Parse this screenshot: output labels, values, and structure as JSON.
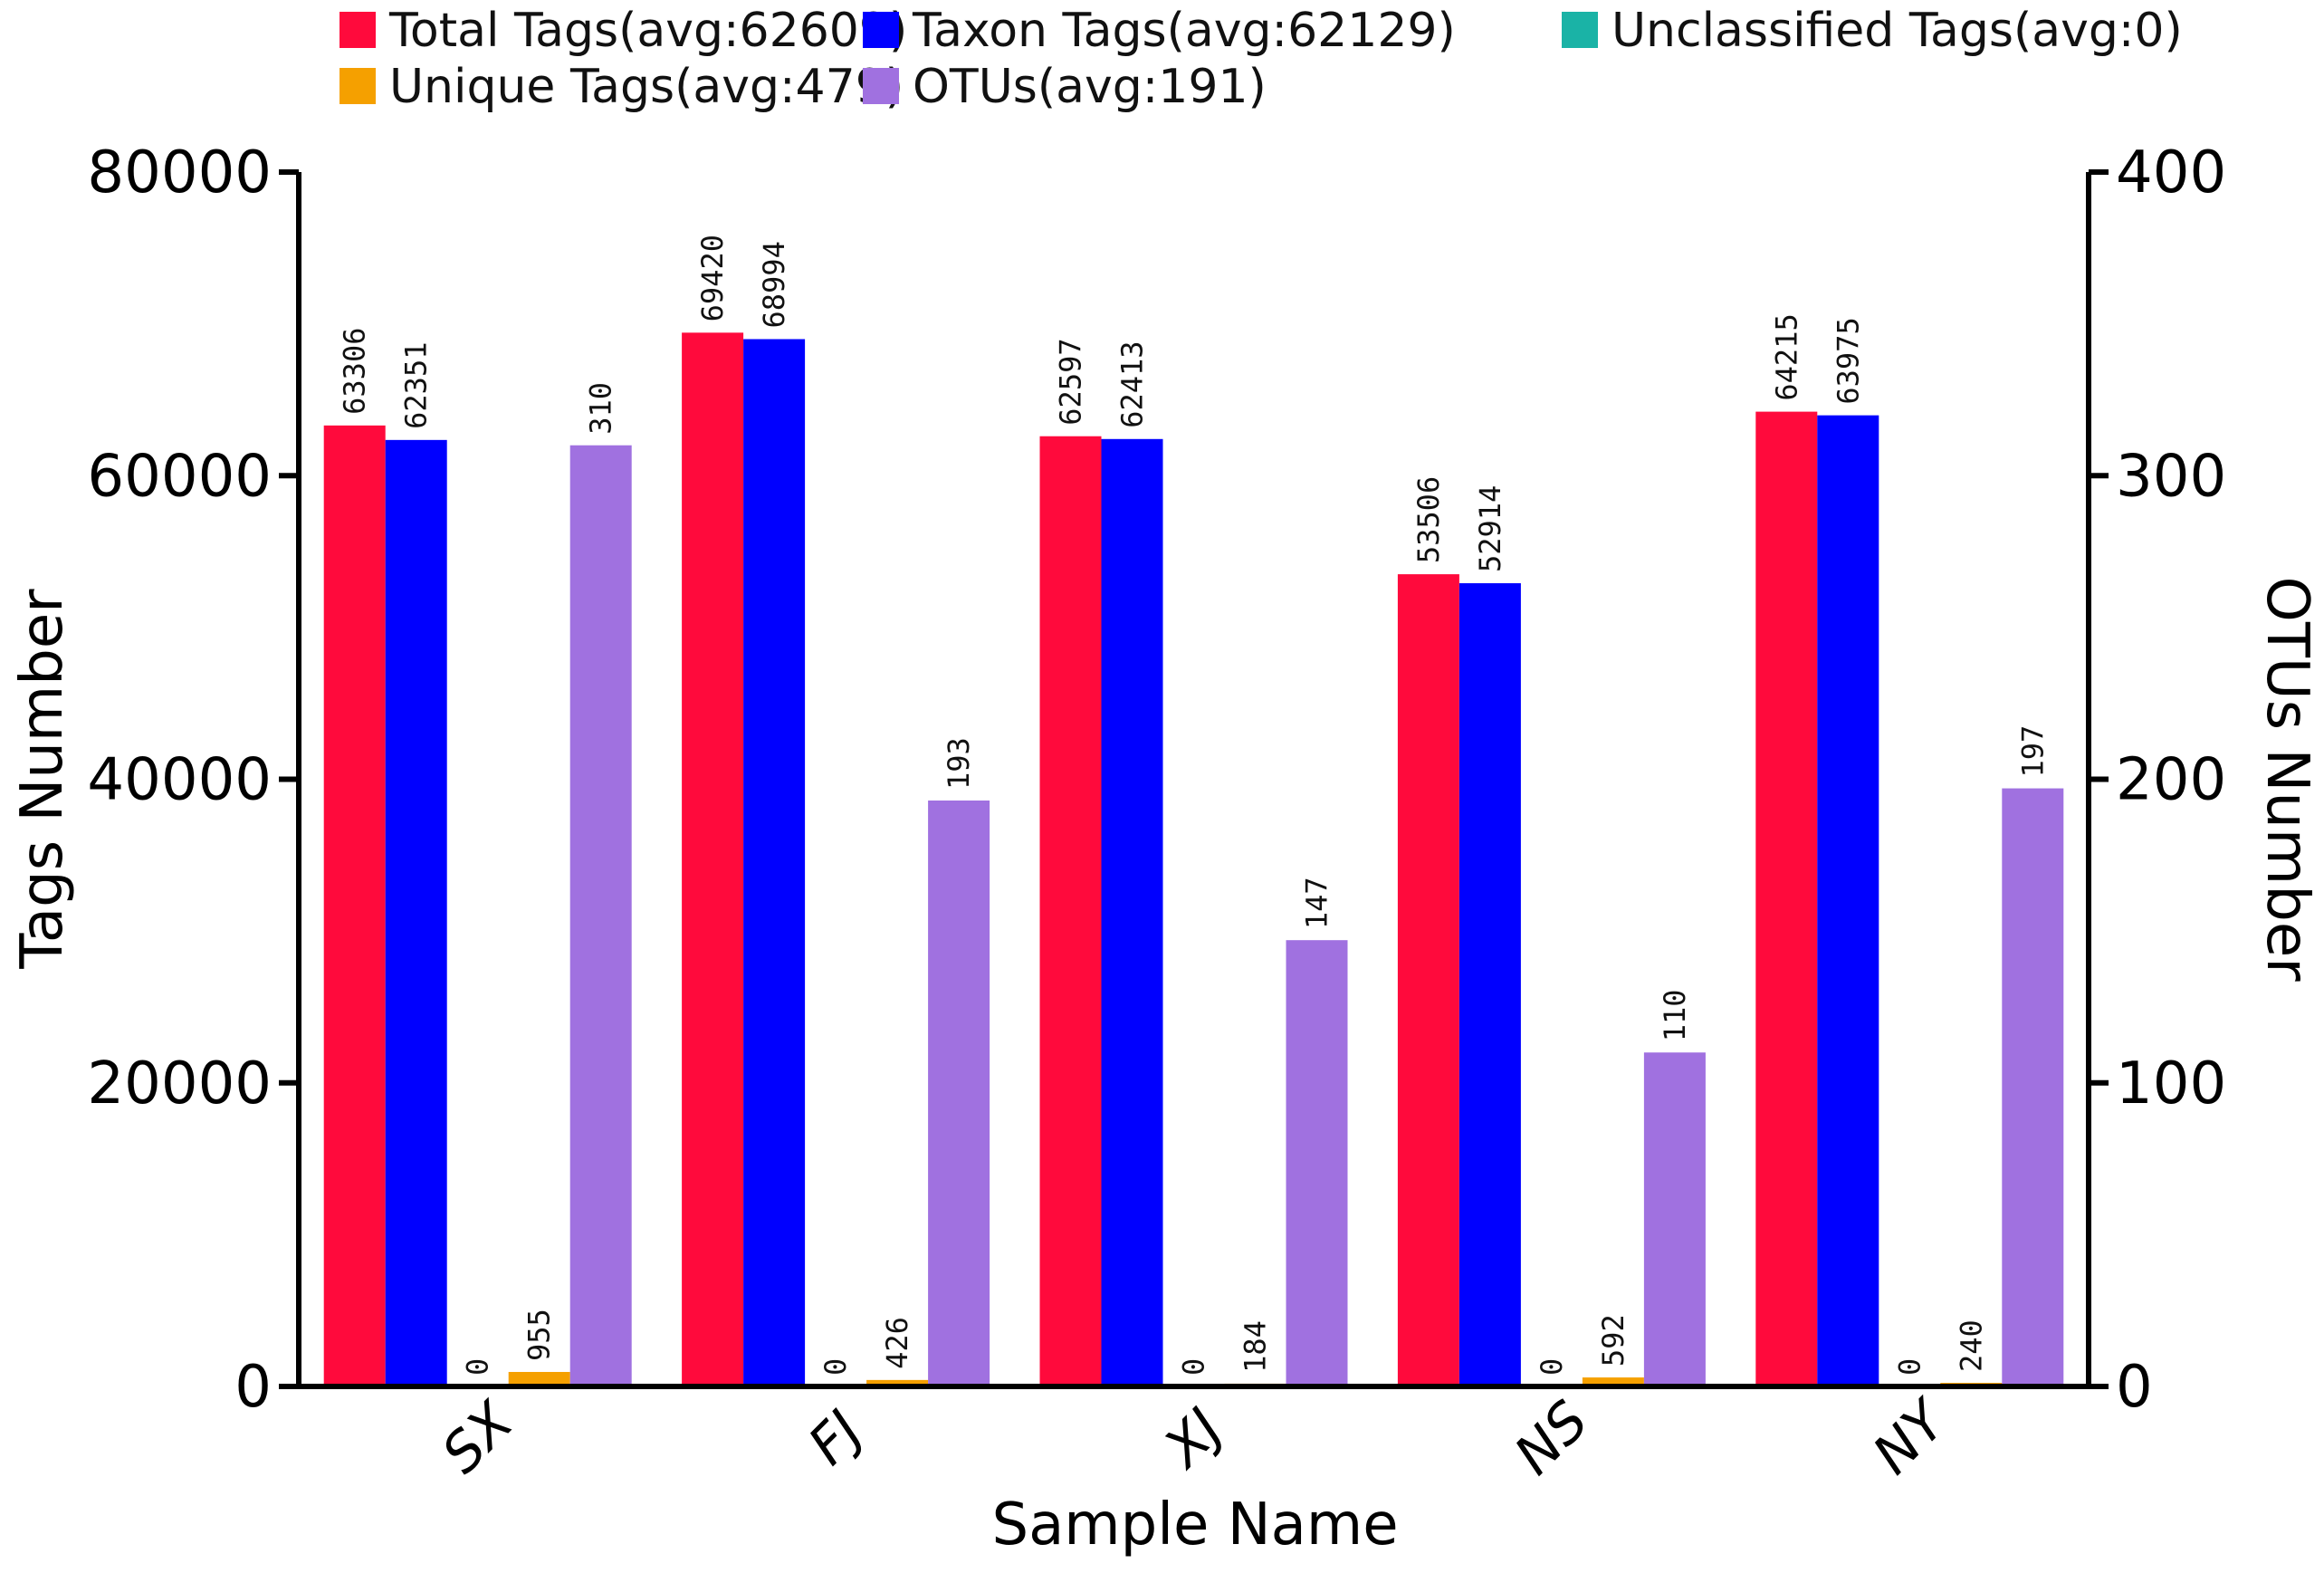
{
  "chart_data": {
    "type": "bar",
    "categories": [
      "SX",
      "FJ",
      "XJ",
      "NS",
      "NY"
    ],
    "xlabel": "Sample Name",
    "ylabel": "Tags Number",
    "y2label": "OTUs Number",
    "ylim": [
      0,
      80000
    ],
    "y2lim": [
      0,
      400
    ],
    "yticks": [
      "0",
      "20000",
      "40000",
      "60000",
      "80000"
    ],
    "y2ticks": [
      "0",
      "100",
      "200",
      "300",
      "400"
    ],
    "legend_position": "top",
    "series": [
      {
        "name": "Total Tags(avg:62609)",
        "color": "#ff0a3c",
        "axis": "left",
        "values": [
          63306,
          69420,
          62597,
          53506,
          64215
        ]
      },
      {
        "name": "Taxon Tags(avg:62129)",
        "color": "#0000ff",
        "axis": "left",
        "values": [
          62351,
          68994,
          62413,
          52914,
          63975
        ]
      },
      {
        "name": "Unclassified Tags(avg:0)",
        "color": "#1ab3a6",
        "axis": "left",
        "values": [
          0,
          0,
          0,
          0,
          0
        ]
      },
      {
        "name": "Unique Tags(avg:479)",
        "color": "#f5a000",
        "axis": "left",
        "values": [
          955,
          426,
          184,
          592,
          240
        ]
      },
      {
        "name": "OTUs(avg:191)",
        "color": "#a071e0",
        "axis": "right",
        "values": [
          310,
          193,
          147,
          110,
          197
        ]
      }
    ]
  }
}
